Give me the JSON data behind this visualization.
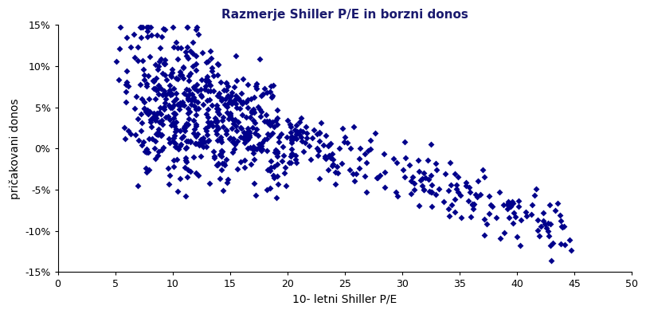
{
  "title": "Razmerje Shiller P/E in borzni donos",
  "xlabel": "10- letni Shiller P/E",
  "ylabel": "pričakovani donos",
  "title_color": "#1a1a6e",
  "marker_color": "#00008B",
  "xlim": [
    0,
    50
  ],
  "ylim": [
    -0.15,
    0.15
  ],
  "xticks": [
    0,
    5,
    10,
    15,
    20,
    25,
    30,
    35,
    40,
    45,
    50
  ],
  "yticks": [
    -0.15,
    -0.1,
    -0.05,
    0.0,
    0.05,
    0.1,
    0.15
  ],
  "marker": "D",
  "markersize": 4,
  "seed": 123,
  "n_points": 800
}
